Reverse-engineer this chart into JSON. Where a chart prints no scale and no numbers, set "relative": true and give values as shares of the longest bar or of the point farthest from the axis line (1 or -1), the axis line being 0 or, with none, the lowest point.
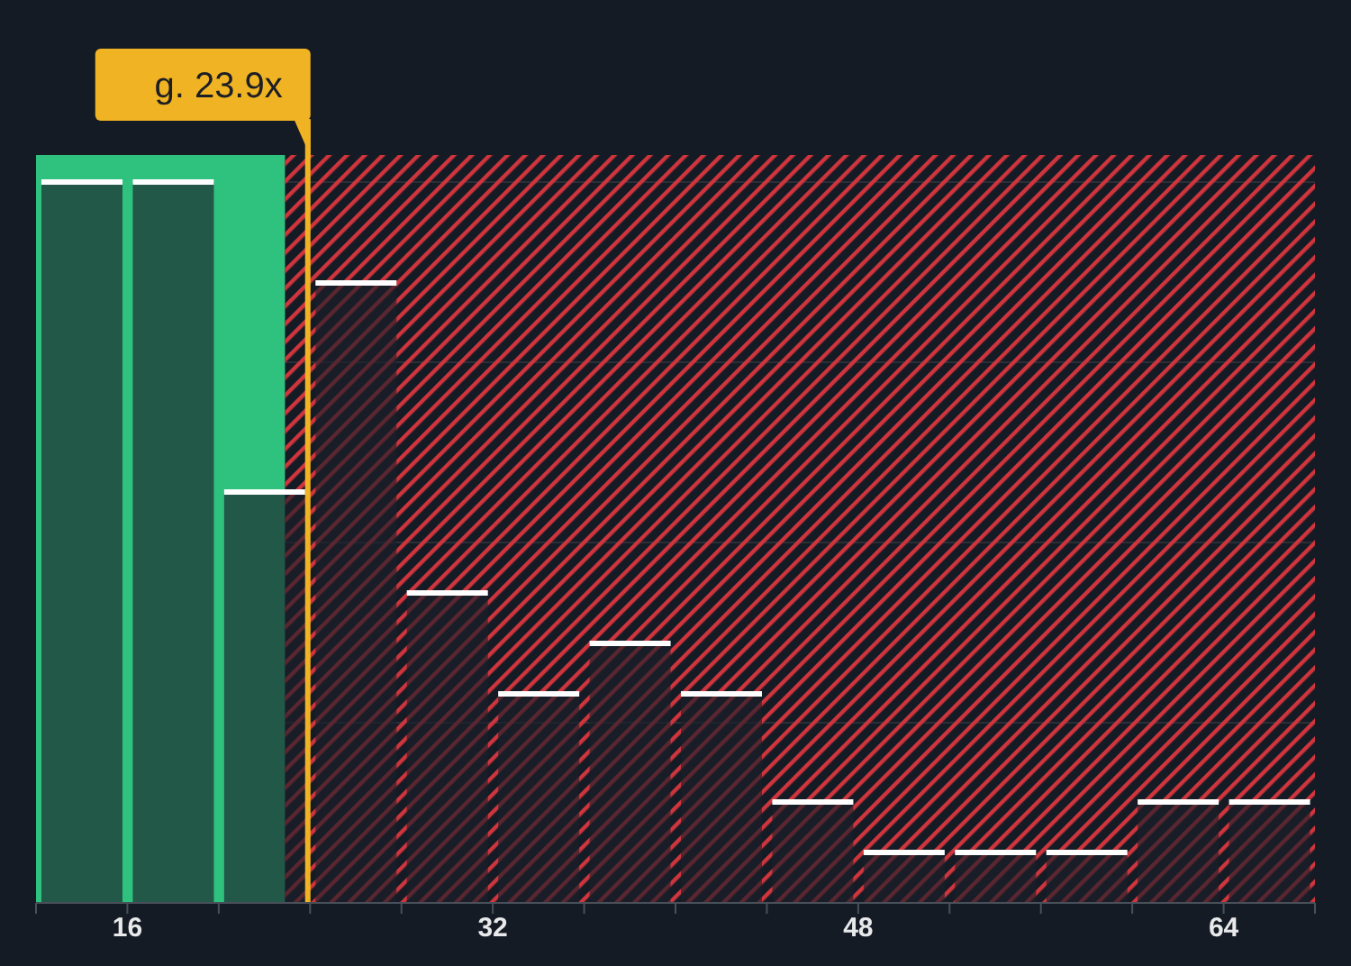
{
  "chart_data": {
    "type": "bar",
    "relative": true,
    "x": [
      14,
      18,
      22,
      26,
      30,
      34,
      38,
      42,
      46,
      50,
      54,
      58,
      62,
      66
    ],
    "values": [
      1,
      1,
      0.57,
      0.86,
      0.43,
      0.29,
      0.36,
      0.29,
      0.14,
      0.07,
      0.07,
      0.07,
      0.14,
      0.14
    ],
    "color": "#1a1f29",
    "xlim": [
      12,
      68
    ],
    "xticks": [
      {
        "value": 12,
        "label": null
      },
      16,
      {
        "value": 20,
        "label": null
      },
      {
        "value": 24,
        "label": null
      },
      {
        "value": 28,
        "label": null
      },
      32,
      {
        "value": 36,
        "label": null
      },
      {
        "value": 40,
        "label": null
      },
      {
        "value": 44,
        "label": null
      },
      48,
      {
        "value": 52,
        "label": null
      },
      {
        "value": 56,
        "label": null
      },
      {
        "value": 60,
        "label": null
      },
      64,
      {
        "value": 68,
        "label": null
      }
    ],
    "grid": "y",
    "ref_lines": [
      {
        "axis": "x",
        "value": 23.9,
        "label": "g. 23.9x",
        "color": "#f0b323"
      }
    ],
    "bands": [
      {
        "axis": "x",
        "from": 12,
        "to": 22.9,
        "color": "#2ec27e"
      },
      {
        "axis": "x",
        "from": 22.9,
        "to": 68,
        "color": "#d0353d"
      }
    ]
  }
}
